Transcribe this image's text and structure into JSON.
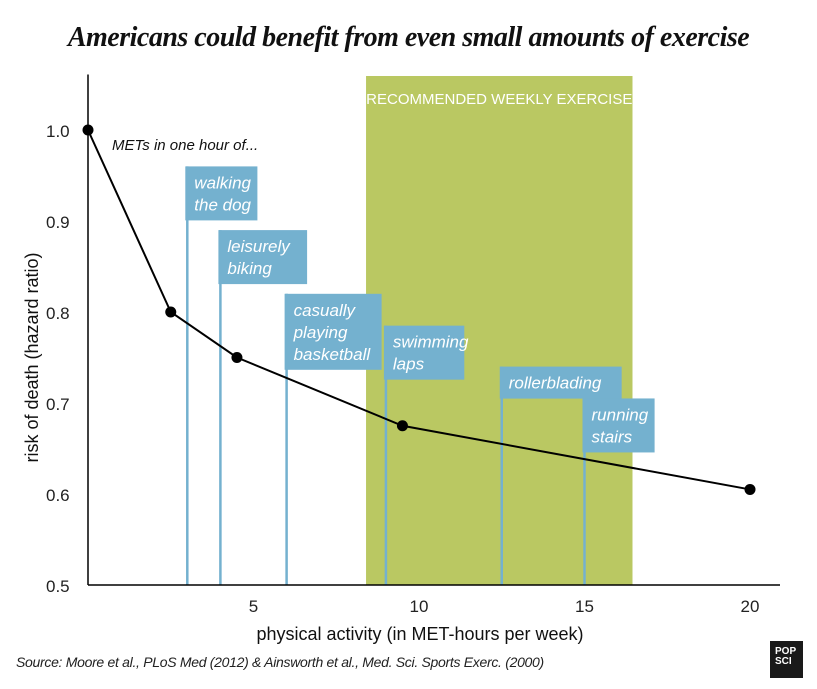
{
  "chart_data": {
    "type": "line",
    "title": "Americans could benefit from even small amounts of exercise",
    "xlabel": "physical activity (in MET-hours per week)",
    "ylabel": "risk of death  (hazard ratio)",
    "xlim": [
      0,
      21
    ],
    "ylim": [
      0.5,
      1.05
    ],
    "xticks": [
      5,
      10,
      15,
      20
    ],
    "xtick_labels": [
      "5",
      "10",
      "15",
      "20"
    ],
    "yticks": [
      0.5,
      0.6,
      0.7,
      0.8,
      0.9,
      1.0
    ],
    "ytick_labels": [
      "0.5",
      "0.6",
      "0.7",
      "0.8",
      "0.9",
      "1.0"
    ],
    "grid": false,
    "series": [
      {
        "name": "risk of death",
        "x": [
          0,
          2.5,
          4.5,
          9.5,
          20
        ],
        "y": [
          1.0,
          0.8,
          0.75,
          0.675,
          0.605
        ],
        "color": "#000000"
      }
    ],
    "shaded_region": {
      "label": "RECOMMENDED WEEKLY EXERCISE",
      "x_range": [
        8.4,
        16.45
      ],
      "color": "#bac862"
    },
    "annotation_header": "METs in one hour of...",
    "activities": [
      {
        "label_lines": [
          "walking",
          "the dog"
        ],
        "met": 3.0,
        "label_y": 0.96
      },
      {
        "label_lines": [
          "leisurely",
          "biking"
        ],
        "met": 4.0,
        "label_y": 0.89
      },
      {
        "label_lines": [
          "casually",
          "playing",
          "basketball"
        ],
        "met": 6.0,
        "label_y": 0.82
      },
      {
        "label_lines": [
          "swimming",
          "laps"
        ],
        "met": 9.0,
        "label_y": 0.785
      },
      {
        "label_lines": [
          "rollerblading"
        ],
        "met": 12.5,
        "label_y": 0.74
      },
      {
        "label_lines": [
          "running",
          "stairs"
        ],
        "met": 15.0,
        "label_y": 0.705
      }
    ],
    "activity_color": "#74b1cf"
  },
  "source": "Source: Moore et al., PLoS Med (2012) & Ainsworth et al., Med. Sci. Sports Exerc. (2000)",
  "logo": {
    "line1": "POP",
    "line2": "SCI"
  }
}
